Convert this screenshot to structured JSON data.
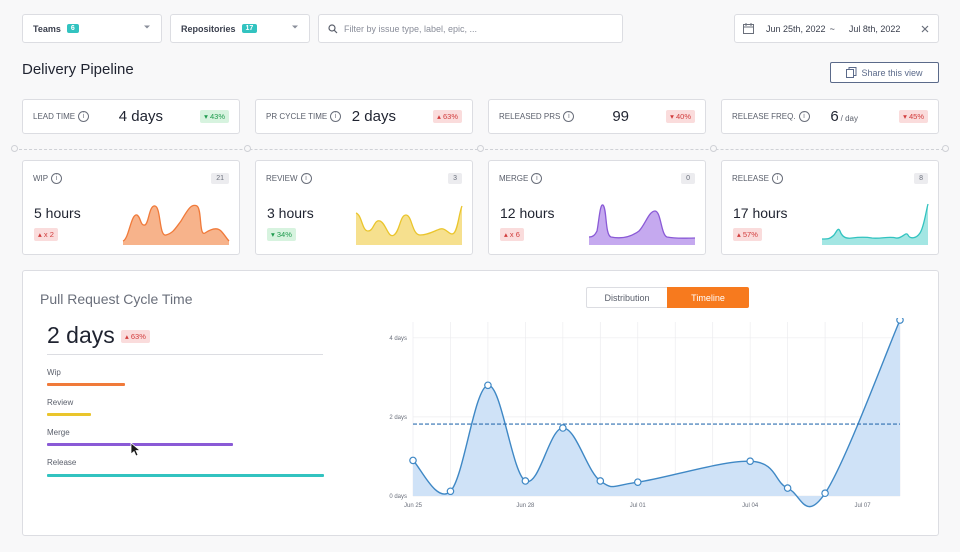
{
  "filters": {
    "teams_label": "Teams",
    "teams_count": "6",
    "repos_label": "Repositories",
    "repos_count": "17",
    "search_placeholder": "Filter by issue type, label, epic, ...",
    "date_from": "Jun 25th, 2022",
    "date_sep": "~",
    "date_to": "Jul 8th, 2022"
  },
  "page": {
    "title": "Delivery Pipeline",
    "share_label": "Share this view"
  },
  "kpis": [
    {
      "label": "LEAD TIME",
      "value": "4 days",
      "unit": "",
      "badge": "43%",
      "dir": "down",
      "tone": "green"
    },
    {
      "label": "PR CYCLE TIME",
      "value": "2 days",
      "unit": "",
      "badge": "63%",
      "dir": "up",
      "tone": "red"
    },
    {
      "label": "RELEASED PRS",
      "value": "99",
      "unit": "",
      "badge": "40%",
      "dir": "down",
      "tone": "red"
    },
    {
      "label": "RELEASE FREQ.",
      "value": "6",
      "unit": "/ day",
      "badge": "45%",
      "dir": "down",
      "tone": "red"
    }
  ],
  "stages": [
    {
      "label": "WIP",
      "count": "21",
      "duration": "5 hours",
      "badge": "x 2",
      "dir": "up",
      "tone": "red",
      "color": "#f07a3a",
      "fill": "#f7b38b"
    },
    {
      "label": "REVIEW",
      "count": "3",
      "duration": "3 hours",
      "badge": "34%",
      "dir": "down",
      "tone": "green",
      "color": "#eac52c",
      "fill": "#f6e08e"
    },
    {
      "label": "MERGE",
      "count": "0",
      "duration": "12 hours",
      "badge": "x 6",
      "dir": "up",
      "tone": "red",
      "color": "#8a5ad6",
      "fill": "#c5a9ef"
    },
    {
      "label": "RELEASE",
      "count": "8",
      "duration": "17 hours",
      "badge": "57%",
      "dir": "up",
      "tone": "red",
      "color": "#32c3c0",
      "fill": "#a3e6e3"
    }
  ],
  "panel": {
    "title": "Pull Request Cycle Time",
    "tab_distribution": "Distribution",
    "tab_timeline": "Timeline",
    "active_tab": "Timeline",
    "total": "2 days",
    "total_badge": "63%",
    "legend": [
      {
        "label": "Wip",
        "color": "#f07a3a",
        "share": 0.28
      },
      {
        "label": "Review",
        "color": "#eac52c",
        "share": 0.16
      },
      {
        "label": "Merge",
        "color": "#8a5ad6",
        "share": 0.67
      },
      {
        "label": "Release",
        "color": "#32c3c0",
        "share": 1.0
      }
    ]
  },
  "chart_data": {
    "type": "area",
    "x_ticks": [
      "Jun 25",
      "Jun 28",
      "Jul 01",
      "Jul 04",
      "Jul 07"
    ],
    "y_ticks": [
      "0 days",
      "2 days",
      "4 days"
    ],
    "ylim": [
      0,
      4.4
    ],
    "x": [
      "Jun 25",
      "Jun 26",
      "Jun 27",
      "Jun 28",
      "Jun 29",
      "Jun 30",
      "Jul 01",
      "Jul 02",
      "Jul 03",
      "Jul 04",
      "Jul 05",
      "Jul 06",
      "Jul 07",
      "Jul 08"
    ],
    "values": [
      0.9,
      0.12,
      2.8,
      0.38,
      1.72,
      0.38,
      0.35,
      null,
      null,
      0.88,
      0.2,
      0.07,
      null,
      4.45
    ],
    "average": 1.82,
    "line_color": "#3f88c5",
    "fill_color": "#cfe2f7",
    "grid": true
  }
}
